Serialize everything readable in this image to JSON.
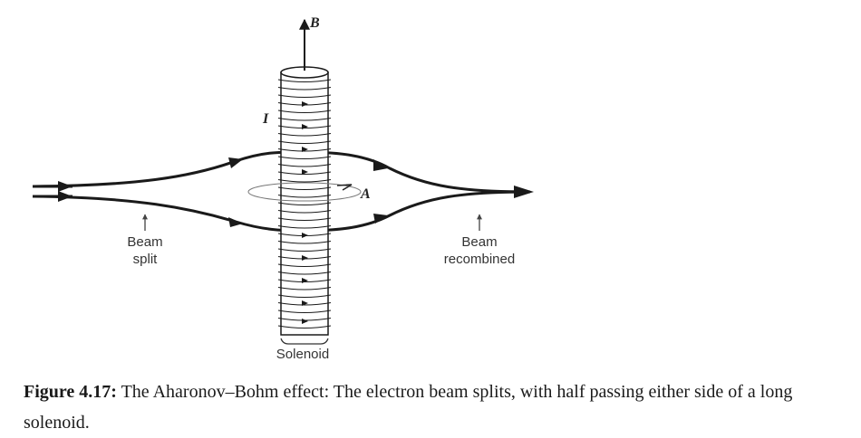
{
  "diagram": {
    "labels": {
      "magnetic_field": "B",
      "current": "I",
      "vector_potential": "A",
      "beam_split_line1": "Beam",
      "beam_split_line2": "split",
      "beam_recombined_line1": "Beam",
      "beam_recombined_line2": "recombined",
      "solenoid": "Solenoid"
    }
  },
  "caption": {
    "label": "Figure 4.17:",
    "text": "The Aharonov–Bohm effect: The electron beam splits, with half passing either side of a long solenoid."
  },
  "colors": {
    "ink": "#1a1a1a",
    "label": "#333333",
    "background": "#ffffff"
  }
}
